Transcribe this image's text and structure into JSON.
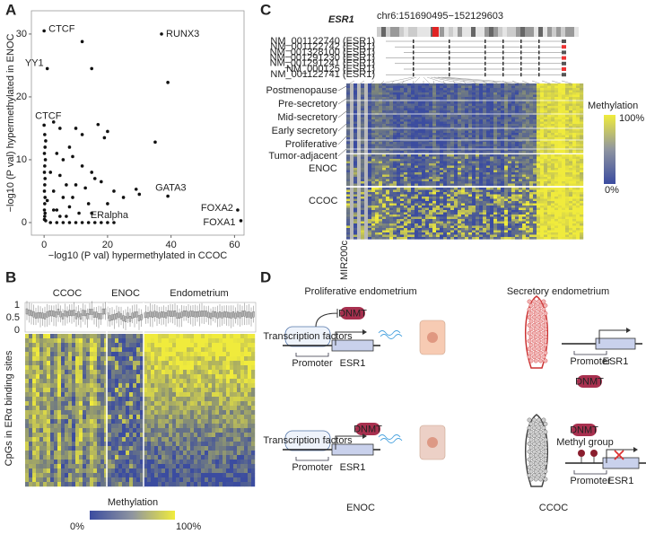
{
  "chart_data": {
    "type": "scatter",
    "label": "A",
    "x_label": "−log10 (P val) hypermethylated in CCOC",
    "y_label": "−log10 (P val) hypermethylated in ENOC",
    "x": [
      0,
      37,
      1,
      0,
      39,
      18,
      61,
      62,
      12,
      15,
      39,
      0.2,
      0.5,
      0.3,
      0.1,
      0.4,
      0.2,
      0.1,
      0.3,
      0.2,
      0.1,
      0.3,
      0.2,
      0.1,
      0.3,
      0.2,
      0.1,
      0.5,
      3,
      5,
      10,
      17,
      20,
      19,
      35,
      12,
      8,
      4,
      6,
      9,
      12,
      15,
      2,
      5,
      7,
      10,
      13,
      16,
      18,
      22,
      3,
      6,
      9,
      14,
      20,
      25,
      29,
      30,
      4,
      8,
      11,
      2,
      4,
      6,
      8,
      10,
      12,
      14,
      16,
      20,
      22,
      1,
      3,
      5,
      7,
      15
    ],
    "values": [
      30.5,
      30,
      24.5,
      15.5,
      4.2,
      0,
      2,
      0.3,
      28.8,
      24.5,
      22.3,
      14,
      13,
      12,
      11,
      10,
      9,
      8,
      7,
      6,
      5,
      4,
      3,
      2,
      1.5,
      1,
      0.5,
      0.3,
      16,
      15,
      15,
      15.6,
      14.5,
      13.5,
      12.8,
      14,
      12,
      11,
      10,
      10.5,
      9,
      8,
      8,
      7.5,
      6,
      6,
      5.5,
      7,
      6.5,
      5,
      5,
      4,
      4,
      3,
      3,
      4,
      5.3,
      4.5,
      2,
      2.5,
      1.5,
      0,
      0,
      0,
      0,
      0,
      0,
      0,
      0,
      0,
      0,
      3.5,
      2,
      1,
      1,
      1.5
    ],
    "color": "#111111",
    "xlim": [
      -4,
      63
    ],
    "ylim": [
      -2,
      33.7
    ],
    "xticks": [
      0,
      20,
      40,
      60
    ],
    "yticks": [
      0,
      10,
      20,
      30
    ],
    "annotations": [
      {
        "text": "CTCF",
        "point": 0
      },
      {
        "text": "RUNX3",
        "point": 1
      },
      {
        "text": "YY1",
        "point": 2
      },
      {
        "text": "CTCF",
        "point": 3
      },
      {
        "text": "GATA3",
        "point": 4
      },
      {
        "text": "ERalpha",
        "point": 5
      },
      {
        "text": "FOXA2",
        "point": 6
      },
      {
        "text": "FOXA1",
        "point": 7
      }
    ]
  },
  "panels": {
    "B": {
      "label": "B",
      "groups": [
        "CCOC",
        "ENOC",
        "Endometrium"
      ],
      "box_yticks": [
        1,
        0.5,
        0
      ],
      "y_label": "CpGs in ERα binding sites",
      "legend_title": "Methylation",
      "legend_min": "0%",
      "legend_max": "100%"
    },
    "C": {
      "label": "C",
      "gene": "ESR1",
      "locus": "chr6:151690495−152129603",
      "transcripts": [
        "NM_001122740 (ESR1)",
        "NM_001122742 (ESR1)",
        "NM_001328100 (ESR1)",
        "NM_001291230 (ESR1)",
        "NM_001291241 (ESR1)",
        "NM_000125 (ESR1)",
        "NM_001122741 (ESR1)"
      ],
      "rows": [
        "Postmenopause",
        "Pre-secretory",
        "Mid-secretory",
        "Early secretory",
        "Proliferative",
        "Tumor-adjacent"
      ],
      "groups": [
        "ENOC",
        "CCOC"
      ],
      "column_label": "MIR200c",
      "legend_title": "Methylation",
      "legend_max": "100%",
      "legend_min": "0%"
    },
    "D": {
      "label": "D",
      "quadrants": [
        {
          "title": "Proliferative endometrium",
          "tf": "Transcription factors",
          "dnmt": "DNMT",
          "promoter": "Promoter",
          "gene": "ESR1"
        },
        {
          "title": "Secretory endometrium",
          "dnmt": "DNMT",
          "promoter": "Promoter",
          "gene": "ESR1"
        },
        {
          "title": "ENOC",
          "tf": "Transcription factors",
          "dnmt": "DNMT",
          "promoter": "Promoter",
          "gene": "ESR1"
        },
        {
          "title": "CCOC",
          "dnmt": "DNMT",
          "methyl": "Methyl group",
          "promoter": "Promoter",
          "gene": "ESR1"
        }
      ]
    }
  }
}
